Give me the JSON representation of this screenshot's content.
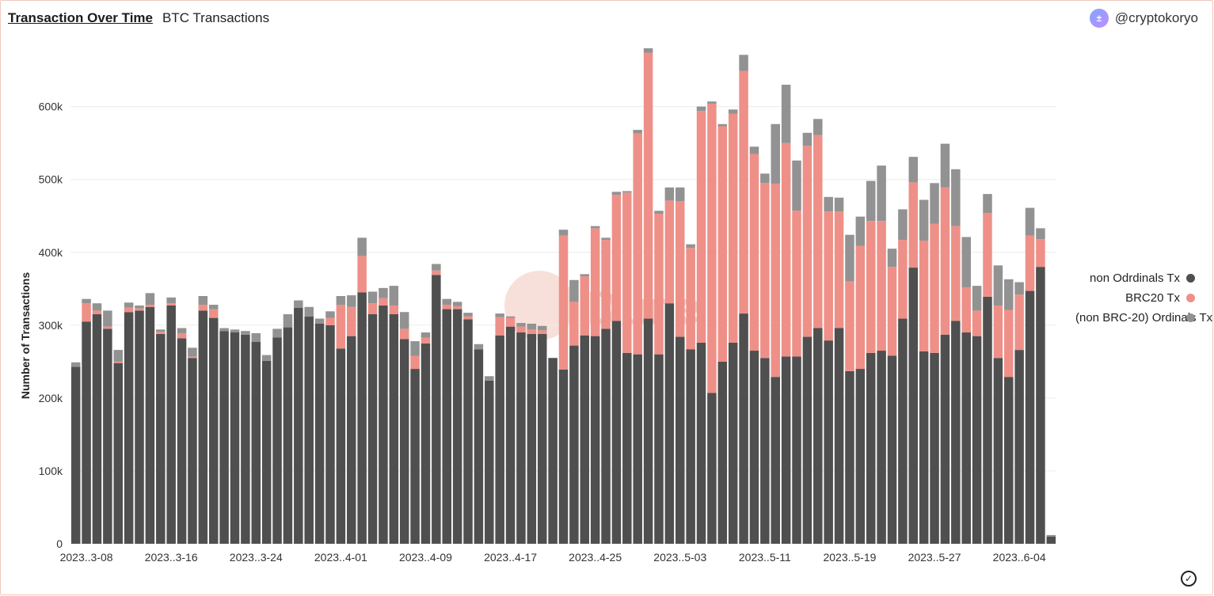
{
  "header": {
    "title": "Transaction Over Time",
    "subtitle": "BTC Transactions",
    "author": "@cryptokoryo",
    "avatar_glyph": "±"
  },
  "watermark": "Dune",
  "legend": {
    "items": [
      {
        "label": "non Odrdinals Tx",
        "color": "#4f4f4f"
      },
      {
        "label": "BRC20 Tx",
        "color": "#ee9088"
      },
      {
        "label": "(non BRC-20) Ordinals Tx",
        "color": "#929292"
      }
    ]
  },
  "chart_data": {
    "type": "bar",
    "stacked": true,
    "ylabel": "Number of Transactions",
    "xlabel": "",
    "ylim": [
      0,
      680000
    ],
    "yticks": [
      0,
      100000,
      200000,
      300000,
      400000,
      500000,
      600000
    ],
    "ytick_labels": [
      "0",
      "100k",
      "200k",
      "300k",
      "400k",
      "500k",
      "600k"
    ],
    "x_tick_labels": [
      "2023..3-08",
      "2023..3-16",
      "2023..3-24",
      "2023..4-01",
      "2023..4-09",
      "2023..4-17",
      "2023..4-25",
      "2023..5-03",
      "2023..5-11",
      "2023..5-19",
      "2023..5-27",
      "2023..6-04"
    ],
    "x_tick_every": 8,
    "grid": true,
    "legend_position": "right",
    "series": [
      {
        "name": "non Odrdinals Tx",
        "color": "#4f4f4f",
        "values": [
          243000,
          305000,
          315000,
          295000,
          248000,
          318000,
          320000,
          325000,
          288000,
          327000,
          282000,
          255000,
          320000,
          310000,
          292000,
          290000,
          287000,
          277000,
          251000,
          283000,
          297000,
          324000,
          312000,
          302000,
          300000,
          268000,
          285000,
          345000,
          315000,
          327000,
          315000,
          281000,
          240000,
          275000,
          369000,
          322000,
          322000,
          308000,
          267000,
          224000,
          286000,
          298000,
          290000,
          288000,
          288000,
          255000,
          239000,
          272000,
          286000,
          285000,
          295000,
          306000,
          262000,
          260000,
          309000,
          260000,
          330000,
          284000,
          267000,
          276000,
          207000,
          250000,
          276000,
          316000,
          265000,
          255000,
          229000,
          257000,
          257000,
          284000,
          296000,
          279000,
          296000,
          237000,
          240000,
          262000,
          265000,
          258000,
          309000,
          379000,
          264000,
          262000,
          287000,
          306000,
          290000,
          285000,
          339000,
          255000,
          229000,
          266000,
          347000,
          380000,
          10000
        ]
      },
      {
        "name": "BRC20 Tx",
        "color": "#ee9088",
        "values": [
          0,
          25000,
          5000,
          3000,
          2000,
          6000,
          3000,
          3000,
          3000,
          3000,
          7000,
          2000,
          8000,
          12000,
          0,
          0,
          0,
          0,
          0,
          0,
          0,
          0,
          0,
          0,
          10000,
          60000,
          40000,
          50000,
          15000,
          10000,
          12000,
          14000,
          18000,
          8000,
          6000,
          6000,
          4000,
          4000,
          0,
          0,
          25000,
          12000,
          8000,
          6000,
          5000,
          0,
          184000,
          60000,
          81000,
          148000,
          122000,
          173000,
          220000,
          303000,
          365000,
          193000,
          141000,
          186000,
          139000,
          318000,
          397000,
          323000,
          314000,
          333000,
          270000,
          240000,
          265000,
          293000,
          200000,
          262000,
          265000,
          177000,
          160000,
          123000,
          169000,
          181000,
          178000,
          122000,
          108000,
          117000,
          152000,
          177000,
          202000,
          130000,
          62000,
          35000,
          115000,
          72000,
          92000,
          76000,
          76000,
          38000,
          0
        ]
      },
      {
        "name": "(non BRC-20) Ordinals Tx",
        "color": "#929292",
        "values": [
          6000,
          6000,
          10000,
          22000,
          16000,
          7000,
          4000,
          16000,
          3000,
          8000,
          7000,
          12000,
          12000,
          6000,
          4000,
          4000,
          5000,
          12000,
          8000,
          12000,
          18000,
          10000,
          13000,
          7000,
          9000,
          12000,
          16000,
          25000,
          16000,
          14000,
          27000,
          23000,
          20000,
          7000,
          9000,
          8000,
          6000,
          5000,
          7000,
          6000,
          5000,
          2000,
          5000,
          8000,
          6000,
          0,
          8000,
          30000,
          3000,
          3000,
          3000,
          4000,
          2000,
          5000,
          6000,
          4000,
          18000,
          19000,
          5000,
          6000,
          3000,
          3000,
          6000,
          22000,
          10000,
          13000,
          82000,
          80000,
          69000,
          18000,
          22000,
          20000,
          19000,
          64000,
          40000,
          55000,
          76000,
          25000,
          42000,
          35000,
          56000,
          56000,
          60000,
          78000,
          69000,
          34000,
          26000,
          55000,
          42000,
          17000,
          38000,
          15000,
          2000
        ]
      }
    ]
  }
}
